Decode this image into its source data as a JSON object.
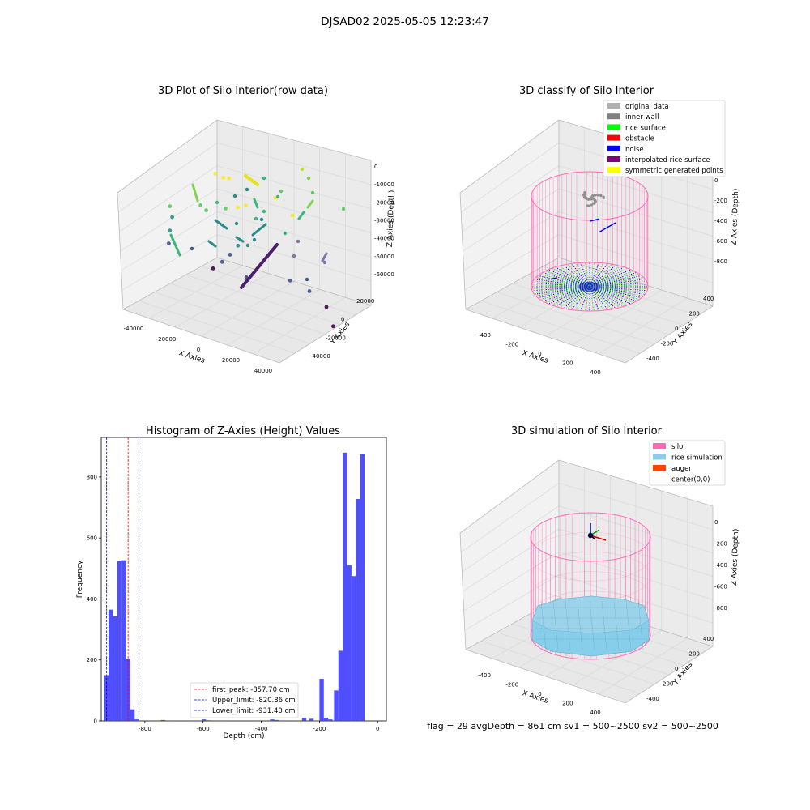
{
  "figure": {
    "suptitle": "DJSAD02 2025-05-05 12:23:47",
    "footer": "flag = 29   avgDepth = 861 cm   sv1 = 500~2500   sv2 = 500~2500"
  },
  "chart_data": [
    {
      "id": "raw3d",
      "type": "scatter",
      "title": "3D Plot of Silo Interior(row data)",
      "xlabel": "X Axies",
      "ylabel": "Y Axies",
      "zlabel": "Z Axies (Depth)",
      "xticks": [
        "-40000",
        "-20000",
        "0",
        "20000",
        "40000"
      ],
      "yticks": [
        "-40000",
        "-20000",
        "0",
        "20000"
      ],
      "zticks": [
        "0",
        "-10000",
        "-20000",
        "-30000",
        "-40000",
        "-50000",
        "-60000"
      ],
      "xlim": [
        -45000,
        45000
      ],
      "ylim": [
        -45000,
        25000
      ],
      "zlim": [
        -62000,
        2000
      ],
      "colormap": "viridis",
      "series": [
        {
          "label": "",
          "points": [
            [
              -10000,
              10000,
              -52000
            ],
            [
              -5000,
              12000,
              -47000
            ],
            [
              0,
              15000,
              -42000
            ],
            [
              5000,
              18000,
              -36000
            ]
          ]
        },
        {
          "label": "",
          "points": [
            [
              -38000,
              -8000,
              -22000
            ],
            [
              -36000,
              -6000,
              -28000
            ],
            [
              -40000,
              -12000,
              -35000
            ],
            [
              -42000,
              -15000,
              -42000
            ]
          ]
        },
        {
          "label": "",
          "points": [
            [
              -18000,
              5000,
              -18000
            ],
            [
              -15000,
              6000,
              -20000
            ],
            [
              -8000,
              3000,
              -15000
            ],
            [
              -3000,
              2000,
              -12000
            ],
            [
              2000,
              5000,
              -10000
            ]
          ]
        },
        {
          "label": "",
          "points": [
            [
              -4000,
              20000,
              0
            ],
            [
              0,
              21000,
              -1000
            ],
            [
              3000,
              22000,
              -500
            ],
            [
              20000,
              15000,
              -2000
            ],
            [
              25000,
              10000,
              -8000
            ]
          ]
        },
        {
          "label": "",
          "points": [
            [
              25000,
              -5000,
              -45000
            ],
            [
              30000,
              -10000,
              -50000
            ],
            [
              28000,
              -20000,
              -58000
            ],
            [
              15000,
              -8000,
              -42000
            ]
          ]
        }
      ]
    },
    {
      "id": "classify3d",
      "type": "scatter",
      "title": "3D classify of Silo Interior",
      "xlabel": "X Axies",
      "ylabel": "Y Axies",
      "zlabel": "Z Axies (Depth)",
      "xticks": [
        "-400",
        "-200",
        "0",
        "200",
        "400"
      ],
      "yticks": [
        "-400",
        "-200",
        "0",
        "200",
        "400"
      ],
      "zticks": [
        "0",
        "-200",
        "-400",
        "-600",
        "-800"
      ],
      "xlim": [
        -500,
        500
      ],
      "ylim": [
        -500,
        500
      ],
      "zlim": [
        -900,
        50
      ],
      "legend": [
        {
          "label": "original data",
          "color": "#b0b0b0"
        },
        {
          "label": "inner wall",
          "color": "#808080"
        },
        {
          "label": "rice surface",
          "color": "#00ff00"
        },
        {
          "label": "obstacle",
          "color": "#ff0000"
        },
        {
          "label": "noise",
          "color": "#0000ff"
        },
        {
          "label": "interpolated rice surface",
          "color": "#800080"
        },
        {
          "label": "symmetric generated points",
          "color": "#ffff00"
        }
      ],
      "silo": {
        "radius": 450,
        "top": -50,
        "bottom": -860,
        "color": "#ff69b4"
      },
      "inner_wall_cluster": {
        "x": 0,
        "y": 0,
        "z": -150
      },
      "noise_segments": [
        [
          [
            20,
            80,
            -300
          ],
          [
            60,
            60,
            -310
          ]
        ],
        [
          [
            100,
            0,
            -350
          ],
          [
            180,
            -40,
            -360
          ]
        ]
      ]
    },
    {
      "id": "hist",
      "type": "bar",
      "title": "Histogram of Z-Axies (Height) Values",
      "xlabel": "Depth (cm)",
      "ylabel": "Frequency",
      "xlim": [
        -950,
        30
      ],
      "ylim": [
        0,
        930
      ],
      "xticks": [
        -800,
        -600,
        -400,
        -200,
        0
      ],
      "yticks": [
        0,
        200,
        400,
        600,
        800
      ],
      "bars": [
        [
          -940,
          -925,
          150
        ],
        [
          -925,
          -910,
          365
        ],
        [
          -910,
          -895,
          343
        ],
        [
          -895,
          -880,
          525
        ],
        [
          -880,
          -865,
          527
        ],
        [
          -865,
          -850,
          203
        ],
        [
          -850,
          -835,
          38
        ],
        [
          -835,
          -820,
          5
        ],
        [
          -745,
          -730,
          3
        ],
        [
          -605,
          -590,
          5
        ],
        [
          -590,
          -575,
          2
        ],
        [
          -370,
          -355,
          5
        ],
        [
          -355,
          -340,
          3
        ],
        [
          -260,
          -245,
          10
        ],
        [
          -235,
          -220,
          7
        ],
        [
          -200,
          -185,
          138
        ],
        [
          -185,
          -170,
          10
        ],
        [
          -170,
          -155,
          5
        ],
        [
          -150,
          -135,
          100
        ],
        [
          -135,
          -120,
          230
        ],
        [
          -120,
          -105,
          880
        ],
        [
          -105,
          -90,
          510
        ],
        [
          -90,
          -75,
          475
        ],
        [
          -75,
          -60,
          728
        ],
        [
          -60,
          -45,
          876
        ]
      ],
      "bar_color": "#4040ff",
      "lines": [
        {
          "label": "first_peak: -857.70 cm",
          "value": -857.7,
          "color": "#ff0000"
        },
        {
          "label": "Upper_limit: -820.86 cm",
          "value": -820.86,
          "color": "#0000cc"
        },
        {
          "label": "Lower_limit: -931.40 cm",
          "value": -931.4,
          "color": "#0000cc"
        }
      ]
    },
    {
      "id": "sim3d",
      "type": "scatter",
      "title": "3D simulation of Silo Interior",
      "xlabel": "X Axies",
      "ylabel": "Y Axies",
      "zlabel": "Z Axies (Depth)",
      "xticks": [
        "-400",
        "-200",
        "0",
        "200",
        "400"
      ],
      "yticks": [
        "-400",
        "-200",
        "0",
        "200",
        "400"
      ],
      "zticks": [
        "0",
        "-200",
        "-400",
        "-600",
        "-800"
      ],
      "xlim": [
        -500,
        500
      ],
      "ylim": [
        -500,
        500
      ],
      "zlim": [
        -900,
        150
      ],
      "legend": [
        {
          "label": "silo",
          "color": "#ff69b4"
        },
        {
          "label": "rice simulation",
          "color": "#87ceeb"
        },
        {
          "label": "auger",
          "color": "#ff4500"
        },
        {
          "label": "center(0,0)",
          "color": "#ffffff"
        }
      ],
      "silo": {
        "radius": 450,
        "top": -50,
        "bottom": -860,
        "color": "#ff69b4"
      },
      "rice_surface_depth": -800
    }
  ]
}
